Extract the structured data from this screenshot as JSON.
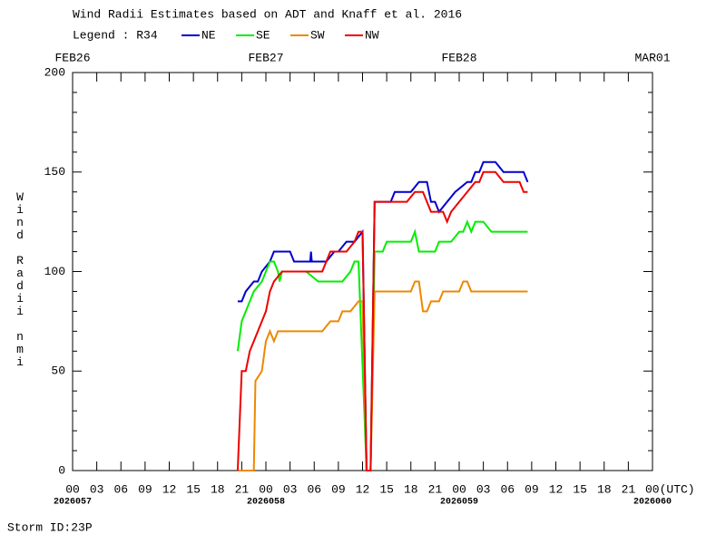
{
  "chart_data": {
    "type": "line",
    "title": "Wind Radii Estimates based on ADT and Knaff et al. 2016",
    "legend_title": "Legend : R34",
    "y_label": "Wind Radii nmi",
    "footer": "Storm ID:23P",
    "xlim": [
      0,
      72
    ],
    "ylim": [
      0,
      200
    ],
    "yticks": [
      0,
      50,
      100,
      150,
      200
    ],
    "xticks": [
      {
        "value": 0,
        "label": "00"
      },
      {
        "value": 3,
        "label": "03"
      },
      {
        "value": 6,
        "label": "06"
      },
      {
        "value": 9,
        "label": "09"
      },
      {
        "value": 12,
        "label": "12"
      },
      {
        "value": 15,
        "label": "15"
      },
      {
        "value": 18,
        "label": "18"
      },
      {
        "value": 21,
        "label": "21"
      },
      {
        "value": 24,
        "label": "00"
      },
      {
        "value": 27,
        "label": "03"
      },
      {
        "value": 30,
        "label": "06"
      },
      {
        "value": 33,
        "label": "09"
      },
      {
        "value": 36,
        "label": "12"
      },
      {
        "value": 39,
        "label": "15"
      },
      {
        "value": 42,
        "label": "18"
      },
      {
        "value": 45,
        "label": "21"
      },
      {
        "value": 48,
        "label": "00"
      },
      {
        "value": 51,
        "label": "03"
      },
      {
        "value": 54,
        "label": "06"
      },
      {
        "value": 57,
        "label": "09"
      },
      {
        "value": 60,
        "label": "12"
      },
      {
        "value": 63,
        "label": "15"
      },
      {
        "value": 66,
        "label": "18"
      },
      {
        "value": 69,
        "label": "21"
      },
      {
        "value": 72,
        "label": "00(UTC)"
      }
    ],
    "day_ticks": [
      {
        "value": 0,
        "label": "FEB26"
      },
      {
        "value": 24,
        "label": "FEB27"
      },
      {
        "value": 48,
        "label": "FEB28"
      },
      {
        "value": 72,
        "label": "MAR01"
      }
    ],
    "julian_ticks": [
      {
        "value": 0,
        "label": "2026057"
      },
      {
        "value": 24,
        "label": "2026058"
      },
      {
        "value": 48,
        "label": "2026059"
      },
      {
        "value": 72,
        "label": "2026060"
      }
    ],
    "series": [
      {
        "name": "NE",
        "color": "#0000cc",
        "x": [
          20.5,
          21,
          21.5,
          22.5,
          23,
          23.5,
          24.5,
          25,
          27,
          27.5,
          29.5,
          29.6,
          29.7,
          31.5,
          32.5,
          33,
          34,
          35,
          36,
          36.5,
          37,
          37.5,
          39.5,
          40,
          42,
          43,
          44,
          44.5,
          45,
          45.5,
          46.5,
          47.5,
          49,
          49.5,
          50,
          50.5,
          51,
          52.5,
          53.5,
          56,
          56.5
        ],
        "values": [
          85,
          85,
          90,
          95,
          95,
          100,
          105,
          110,
          110,
          105,
          105,
          110,
          105,
          105,
          110,
          110,
          115,
          115,
          120,
          0,
          0,
          135,
          135,
          140,
          140,
          145,
          145,
          135,
          135,
          130,
          135,
          140,
          145,
          145,
          150,
          150,
          155,
          155,
          150,
          150,
          145
        ]
      },
      {
        "name": "SE",
        "color": "#00ee00",
        "x": [
          20.5,
          21,
          21.5,
          22,
          22.5,
          23.5,
          24,
          24.5,
          25,
          25.5,
          25.7,
          26,
          29,
          30.5,
          33.5,
          34.5,
          35,
          35.5,
          36.5,
          37,
          37.5,
          38.5,
          39,
          42,
          42.5,
          43,
          45,
          45.5,
          47,
          48,
          48.5,
          49,
          49.5,
          50,
          51,
          52,
          56.5
        ],
        "values": [
          60,
          75,
          80,
          85,
          90,
          95,
          100,
          105,
          105,
          100,
          95,
          100,
          100,
          95,
          95,
          100,
          105,
          105,
          0,
          0,
          110,
          110,
          115,
          115,
          120,
          110,
          110,
          115,
          115,
          120,
          120,
          125,
          120,
          125,
          125,
          120,
          120
        ]
      },
      {
        "name": "SW",
        "color": "#ee8800",
        "x": [
          20.5,
          22.5,
          22.7,
          23.5,
          24,
          24.5,
          25,
          25.5,
          31,
          32,
          33,
          33.5,
          34.5,
          35.5,
          36,
          36.5,
          37,
          37.5,
          42,
          42.5,
          43,
          43.5,
          44,
          44.5,
          45.5,
          46,
          48,
          48.5,
          49,
          49.5,
          56.5
        ],
        "values": [
          0,
          0,
          45,
          50,
          65,
          70,
          65,
          70,
          70,
          75,
          75,
          80,
          80,
          85,
          85,
          0,
          0,
          90,
          90,
          95,
          95,
          80,
          80,
          85,
          85,
          90,
          90,
          95,
          95,
          90,
          90
        ]
      },
      {
        "name": "NW",
        "color": "#ee0000",
        "x": [
          20.5,
          21,
          21.5,
          22,
          22.5,
          23.5,
          24,
          24.5,
          25,
          26,
          31,
          31.5,
          32,
          34,
          35,
          35.5,
          36,
          36.5,
          37,
          37.5,
          41.5,
          42.5,
          43.5,
          44.5,
          45,
          46,
          46.5,
          47,
          48,
          49,
          50,
          50.5,
          51,
          52.5,
          53.5,
          55.5,
          56,
          56.5
        ],
        "values": [
          0,
          50,
          50,
          60,
          65,
          75,
          80,
          90,
          95,
          100,
          100,
          105,
          110,
          110,
          115,
          120,
          120,
          0,
          0,
          135,
          135,
          140,
          140,
          130,
          130,
          130,
          125,
          130,
          135,
          140,
          145,
          145,
          150,
          150,
          145,
          145,
          140,
          140
        ]
      }
    ]
  }
}
